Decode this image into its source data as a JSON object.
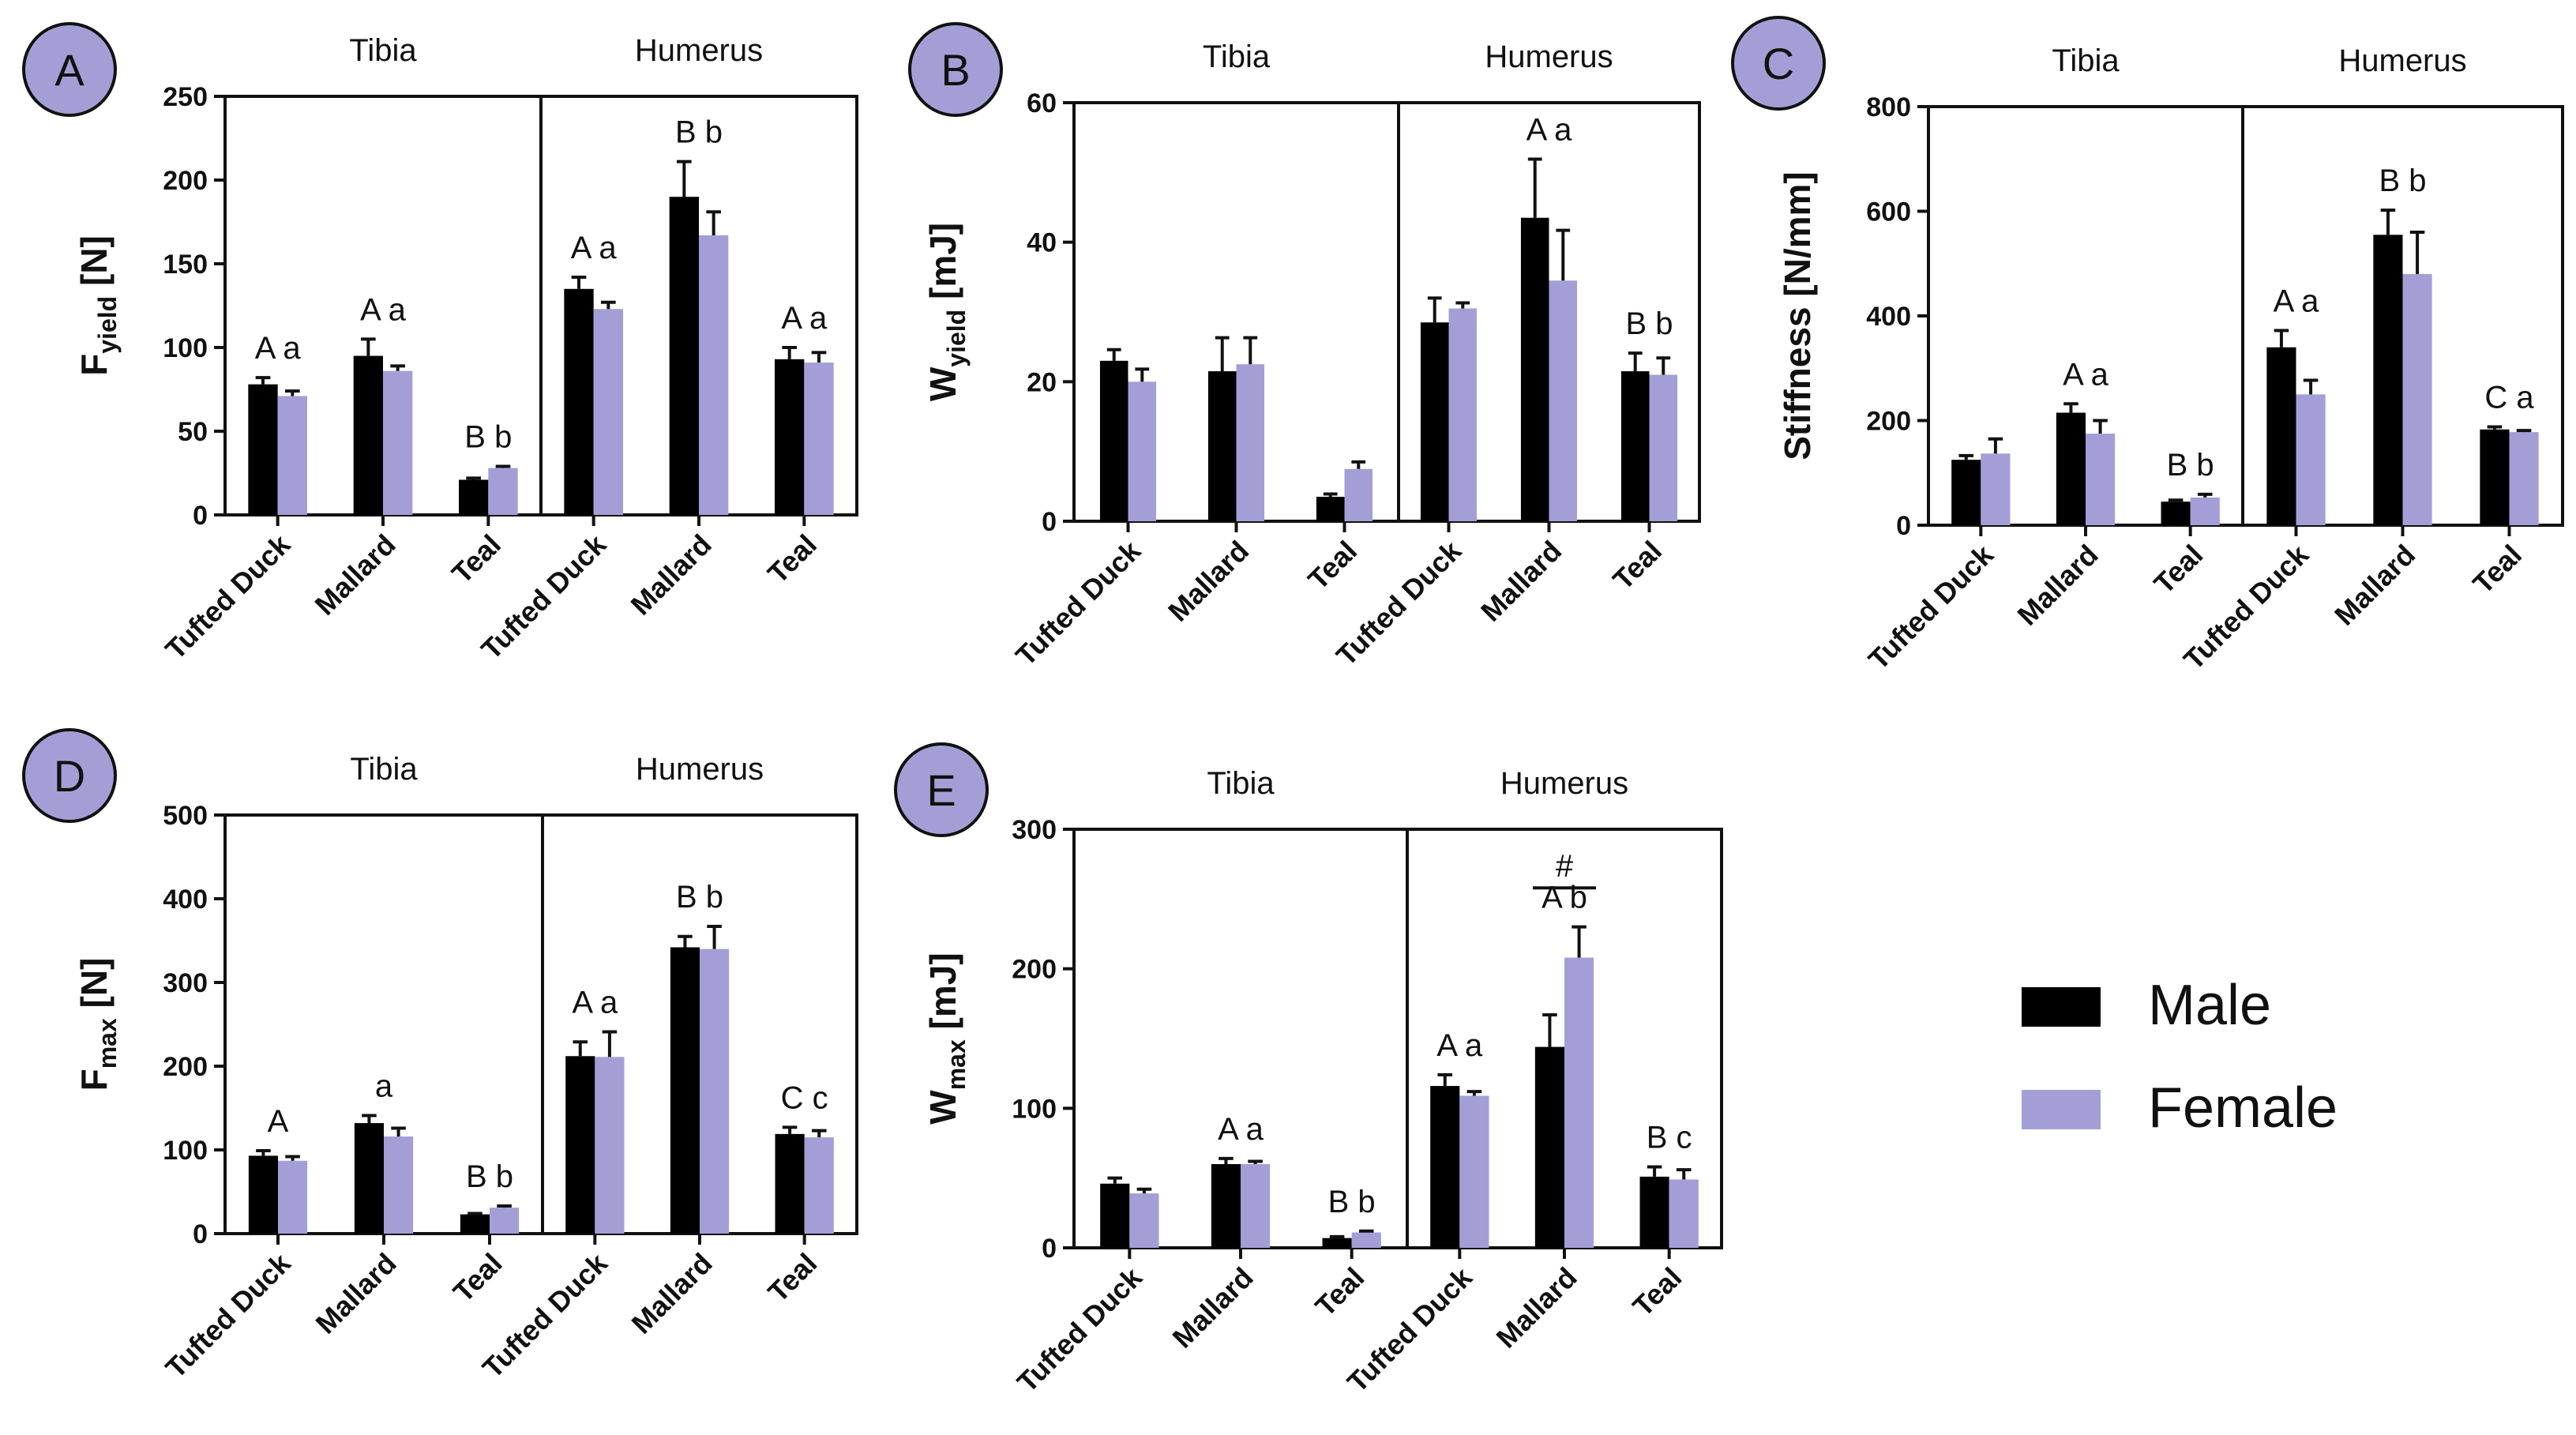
{
  "colors": {
    "male": "#000000",
    "female": "#a39fd6",
    "panel_badge": "#a39fd6"
  },
  "legend": {
    "male": "Male",
    "female": "Female"
  },
  "chart_data": [
    {
      "panel": "A",
      "type": "bar",
      "ylabel_main": "F",
      "ylabel_sub": "yield",
      "ylabel_unit": " [N]",
      "ylim": [
        0,
        250
      ],
      "yticks": [
        0,
        50,
        100,
        150,
        200,
        250
      ],
      "groups": [
        "Tibia",
        "Humerus"
      ],
      "categories": [
        "Tufted Duck",
        "Mallard",
        "Teal",
        "Tufted Duck",
        "Mallard",
        "Teal"
      ],
      "series": [
        {
          "name": "Male",
          "values": [
            78,
            95,
            21,
            135,
            190,
            93
          ],
          "errors": [
            4,
            10,
            1,
            7,
            21,
            7
          ]
        },
        {
          "name": "Female",
          "values": [
            71,
            86,
            28,
            123,
            167,
            91
          ],
          "errors": [
            3,
            3,
            1,
            4,
            14,
            6
          ]
        }
      ],
      "letters": [
        "A a",
        "A a",
        "B b",
        "A a",
        "B b",
        "A a"
      ]
    },
    {
      "panel": "B",
      "type": "bar",
      "ylabel_main": "W",
      "ylabel_sub": "yield",
      "ylabel_unit": " [mJ]",
      "ylim": [
        0,
        60
      ],
      "yticks": [
        0,
        20,
        40,
        60
      ],
      "groups": [
        "Tibia",
        "Humerus"
      ],
      "categories": [
        "Tufted Duck",
        "Mallard",
        "Teal",
        "Tufted Duck",
        "Mallard",
        "Teal"
      ],
      "series": [
        {
          "name": "Male",
          "values": [
            23,
            21.5,
            3.5,
            28.5,
            43.5,
            21.5
          ],
          "errors": [
            1.6,
            4.8,
            0.4,
            3.5,
            8.4,
            2.6
          ]
        },
        {
          "name": "Female",
          "values": [
            20,
            22.5,
            7.5,
            30.5,
            34.5,
            21
          ],
          "errors": [
            1.8,
            3.8,
            1,
            0.8,
            7.2,
            2.4
          ]
        }
      ],
      "letters": [
        "",
        "",
        "",
        "",
        "A a",
        "B b"
      ]
    },
    {
      "panel": "C",
      "type": "bar",
      "ylabel_main": "Stiffness [N/mm]",
      "ylabel_sub": "",
      "ylabel_unit": "",
      "ylim": [
        0,
        800
      ],
      "yticks": [
        0,
        200,
        400,
        600,
        800
      ],
      "groups": [
        "Tibia",
        "Humerus"
      ],
      "categories": [
        "Tufted Duck",
        "Mallard",
        "Teal",
        "Tufted Duck",
        "Mallard",
        "Teal"
      ],
      "series": [
        {
          "name": "Male",
          "values": [
            125,
            215,
            45,
            340,
            555,
            183
          ],
          "errors": [
            8,
            17,
            3,
            32,
            47,
            5
          ]
        },
        {
          "name": "Female",
          "values": [
            137,
            175,
            53,
            250,
            480,
            178
          ],
          "errors": [
            28,
            25,
            6,
            27,
            80,
            3
          ]
        }
      ],
      "letters": [
        "",
        "A a",
        "B b",
        "A a",
        "B b",
        "C a"
      ]
    },
    {
      "panel": "D",
      "type": "bar",
      "ylabel_main": "F",
      "ylabel_sub": "max",
      "ylabel_unit": " [N]",
      "ylim": [
        0,
        500
      ],
      "yticks": [
        0,
        100,
        200,
        300,
        400,
        500
      ],
      "groups": [
        "Tibia",
        "Humerus"
      ],
      "categories": [
        "Tufted Duck",
        "Mallard",
        "Teal",
        "Tufted Duck",
        "Mallard",
        "Teal"
      ],
      "series": [
        {
          "name": "Male",
          "values": [
            93,
            132,
            23,
            212,
            342,
            119
          ],
          "errors": [
            6,
            9,
            1,
            17,
            13,
            8
          ]
        },
        {
          "name": "Female",
          "values": [
            87,
            116,
            31,
            211,
            340,
            115
          ],
          "errors": [
            5,
            10,
            2,
            30,
            27,
            8
          ]
        }
      ],
      "letters": [
        "A",
        "a",
        "B b",
        "A a",
        "B b",
        "C c"
      ]
    },
    {
      "panel": "E",
      "type": "bar",
      "ylabel_main": "W",
      "ylabel_sub": "max",
      "ylabel_unit": " [mJ]",
      "ylim": [
        0,
        300
      ],
      "yticks": [
        0,
        100,
        200,
        300
      ],
      "groups": [
        "Tibia",
        "Humerus"
      ],
      "categories": [
        "Tufted Duck",
        "Mallard",
        "Teal",
        "Tufted Duck",
        "Mallard",
        "Teal"
      ],
      "series": [
        {
          "name": "Male",
          "values": [
            46,
            60,
            7,
            116,
            144,
            51
          ],
          "errors": [
            4,
            4,
            1,
            8,
            23,
            7
          ]
        },
        {
          "name": "Female",
          "values": [
            39,
            60,
            11,
            109,
            208,
            49
          ],
          "errors": [
            3,
            2,
            1,
            3,
            22,
            7
          ]
        }
      ],
      "letters": [
        "",
        "A a",
        "B b",
        "A a",
        "A b",
        "B c"
      ],
      "annotation": "#"
    }
  ]
}
